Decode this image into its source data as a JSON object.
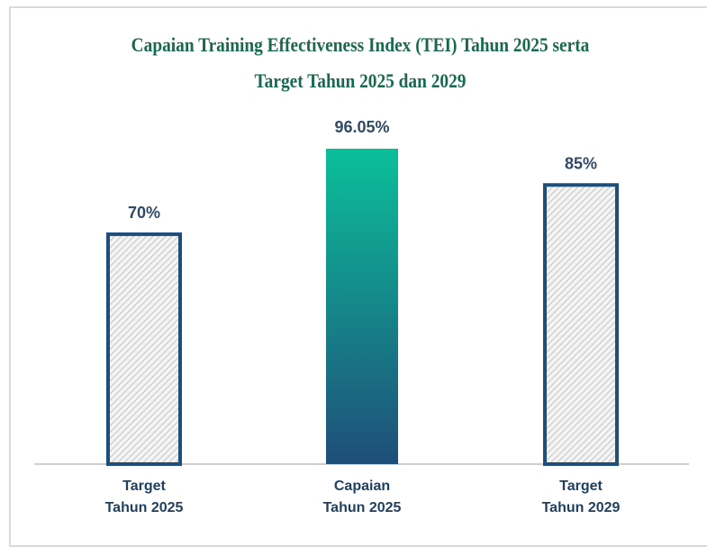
{
  "chart_data": {
    "type": "bar",
    "title": "Capaian Training Effectiveness Index (TEI) Tahun 2025 serta Target Tahun 2025 dan 2029",
    "categories": [
      "Target Tahun 2025",
      "Capaian Tahun 2025",
      "Target Tahun 2029"
    ],
    "values": [
      70,
      96.05,
      85
    ],
    "value_labels": [
      "70%",
      "96.05%",
      "85%"
    ],
    "colors": [
      "#1f4e79",
      "#0bbf9a",
      "#1f4e79"
    ],
    "fills": [
      "hatch",
      "gradient",
      "hatch"
    ],
    "ylim": [
      0,
      100
    ]
  }
}
